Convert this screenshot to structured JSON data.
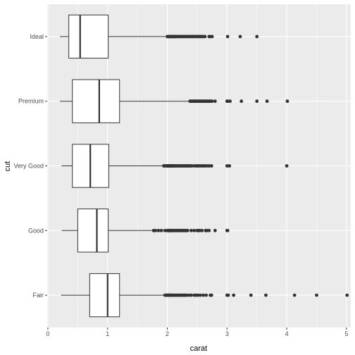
{
  "chart_data": {
    "type": "boxplot",
    "orientation": "horizontal",
    "xlabel": "carat",
    "ylabel": "cut",
    "xlim": [
      0,
      5
    ],
    "x_ticks": [
      0,
      1,
      2,
      3,
      4,
      5
    ],
    "grid": true,
    "legend": "none",
    "colors": {
      "panel": "#EBEBEB",
      "grid_major": "#FFFFFF",
      "box_fill": "#FFFFFF",
      "box_stroke": "#333333",
      "outlier": "#333333",
      "tick_text": "#4D4D4D"
    },
    "categories": [
      "Fair",
      "Good",
      "Very Good",
      "Premium",
      "Ideal"
    ],
    "boxes": [
      {
        "category": "Fair",
        "whisker_low": 0.22,
        "q1": 0.7,
        "median": 1.0,
        "q3": 1.2,
        "whisker_high": 1.95,
        "outliers": [
          1.96,
          1.98,
          2.0,
          2.01,
          2.02,
          2.03,
          2.04,
          2.05,
          2.06,
          2.07,
          2.08,
          2.1,
          2.12,
          2.14,
          2.16,
          2.18,
          2.2,
          2.22,
          2.24,
          2.26,
          2.28,
          2.3,
          2.32,
          2.36,
          2.4,
          2.45,
          2.48,
          2.51,
          2.55,
          2.6,
          2.65,
          2.72,
          2.74,
          3.0,
          3.02,
          3.11,
          3.4,
          3.65,
          4.13,
          4.5,
          5.01
        ]
      },
      {
        "category": "Good",
        "whisker_low": 0.23,
        "q1": 0.5,
        "median": 0.82,
        "q3": 1.01,
        "whisker_high": 1.76,
        "outliers": [
          1.77,
          1.8,
          1.85,
          1.9,
          1.96,
          2.0,
          2.01,
          2.02,
          2.03,
          2.04,
          2.05,
          2.06,
          2.07,
          2.08,
          2.1,
          2.12,
          2.14,
          2.16,
          2.18,
          2.2,
          2.22,
          2.24,
          2.26,
          2.28,
          2.3,
          2.32,
          2.34,
          2.4,
          2.45,
          2.5,
          2.52,
          2.54,
          2.58,
          2.64,
          2.66,
          2.7,
          2.8,
          3.0,
          3.01
        ]
      },
      {
        "category": "Very Good",
        "whisker_low": 0.23,
        "q1": 0.41,
        "median": 0.71,
        "q3": 1.02,
        "whisker_high": 1.93,
        "outliers": [
          1.94,
          1.96,
          1.98,
          2.0,
          2.01,
          2.02,
          2.03,
          2.04,
          2.05,
          2.06,
          2.07,
          2.08,
          2.09,
          2.1,
          2.11,
          2.12,
          2.14,
          2.16,
          2.18,
          2.2,
          2.22,
          2.24,
          2.26,
          2.28,
          2.3,
          2.32,
          2.34,
          2.36,
          2.38,
          2.4,
          2.44,
          2.48,
          2.5,
          2.52,
          2.55,
          2.58,
          2.6,
          2.63,
          2.66,
          2.7,
          2.74,
          3.0,
          3.04,
          4.0
        ]
      },
      {
        "category": "Premium",
        "whisker_low": 0.2,
        "q1": 0.41,
        "median": 0.86,
        "q3": 1.2,
        "whisker_high": 2.37,
        "outliers": [
          2.38,
          2.4,
          2.42,
          2.44,
          2.46,
          2.48,
          2.5,
          2.52,
          2.54,
          2.56,
          2.58,
          2.6,
          2.62,
          2.64,
          2.66,
          2.68,
          2.7,
          2.72,
          2.75,
          2.8,
          3.0,
          3.01,
          3.05,
          3.24,
          3.5,
          3.67,
          4.01
        ]
      },
      {
        "category": "Ideal",
        "whisker_low": 0.2,
        "q1": 0.35,
        "median": 0.54,
        "q3": 1.01,
        "whisker_high": 1.99,
        "outliers": [
          2.0,
          2.01,
          2.02,
          2.03,
          2.04,
          2.05,
          2.06,
          2.07,
          2.08,
          2.09,
          2.1,
          2.11,
          2.12,
          2.13,
          2.14,
          2.15,
          2.16,
          2.18,
          2.2,
          2.22,
          2.24,
          2.26,
          2.28,
          2.3,
          2.32,
          2.34,
          2.36,
          2.38,
          2.4,
          2.42,
          2.44,
          2.46,
          2.48,
          2.5,
          2.52,
          2.54,
          2.56,
          2.58,
          2.6,
          2.63,
          2.7,
          2.72,
          2.75,
          3.01,
          3.22,
          3.5
        ]
      }
    ]
  }
}
